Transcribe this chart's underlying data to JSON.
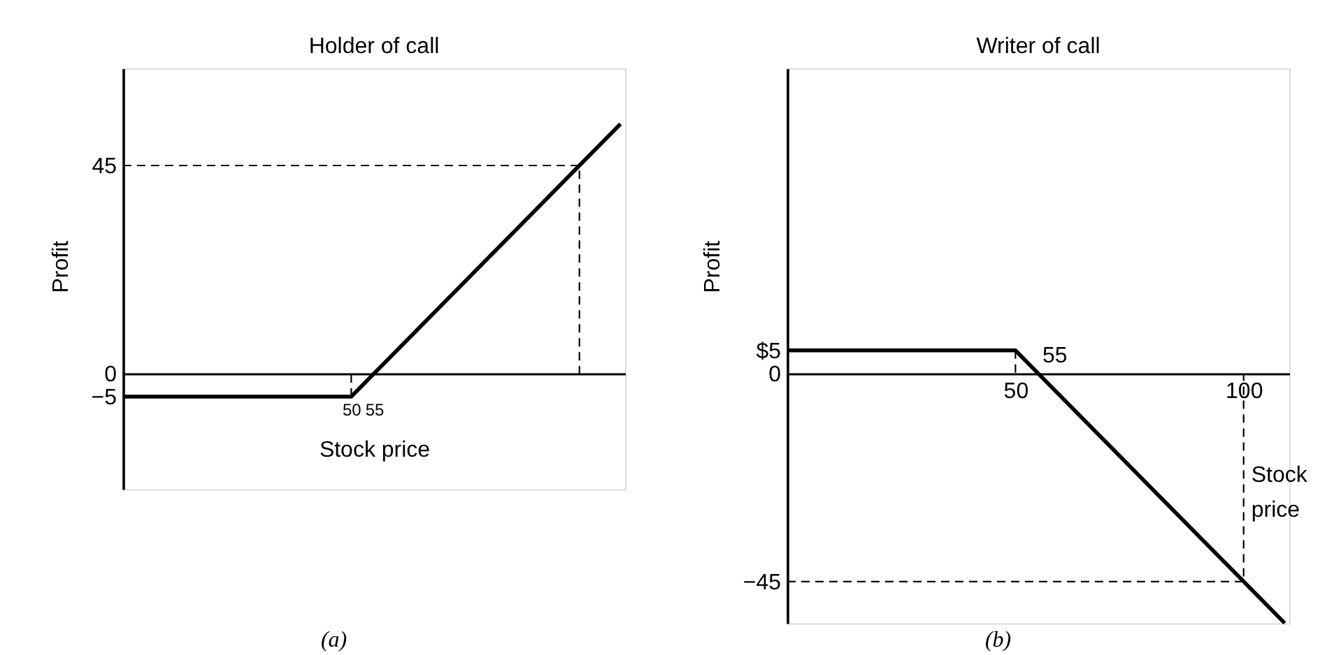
{
  "chart_data": [
    {
      "type": "line",
      "title": "Holder of call",
      "xlabel": "Stock price",
      "ylabel": "Profit",
      "xlim": [
        0,
        110
      ],
      "ylim": [
        -25,
        66
      ],
      "xticks": [
        50,
        55
      ],
      "yticks": [
        {
          "value": -5,
          "label": "−5"
        },
        0,
        45
      ],
      "series": [
        {
          "color": "#000000",
          "line_style": "solid",
          "x": [
            0,
            50,
            109
          ],
          "values": [
            -5,
            -5,
            54
          ]
        },
        {
          "color": "#000000",
          "line_style": "dashed",
          "x": [
            0,
            100,
            100
          ],
          "values": [
            45,
            45,
            0
          ]
        },
        {
          "color": "#000000",
          "line_style": "dashed",
          "x": [
            50,
            50
          ],
          "values": [
            -5,
            0
          ]
        }
      ],
      "annotations": [
        "(a)"
      ]
    },
    {
      "type": "line",
      "title": "Writer of call",
      "xlabel": "Stock price",
      "ylabel": "Profit",
      "xlim": [
        0,
        110
      ],
      "ylim": [
        -54,
        66
      ],
      "xticks": [
        50,
        100
      ],
      "yticks": [
        {
          "value": -45,
          "label": "−45"
        },
        0,
        {
          "value": 5,
          "label": "$5"
        }
      ],
      "series": [
        {
          "color": "#000000",
          "line_style": "solid",
          "x": [
            0,
            50,
            109
          ],
          "values": [
            5,
            5,
            -54
          ]
        },
        {
          "color": "#000000",
          "line_style": "dashed",
          "x": [
            0,
            100,
            100
          ],
          "values": [
            -45,
            -45,
            0
          ]
        },
        {
          "color": "#000000",
          "line_style": "dashed",
          "x": [
            50,
            50
          ],
          "values": [
            5,
            0
          ]
        }
      ],
      "annotations": [
        {
          "text": "55",
          "x": 55,
          "y": 0
        },
        "(b)"
      ]
    }
  ]
}
